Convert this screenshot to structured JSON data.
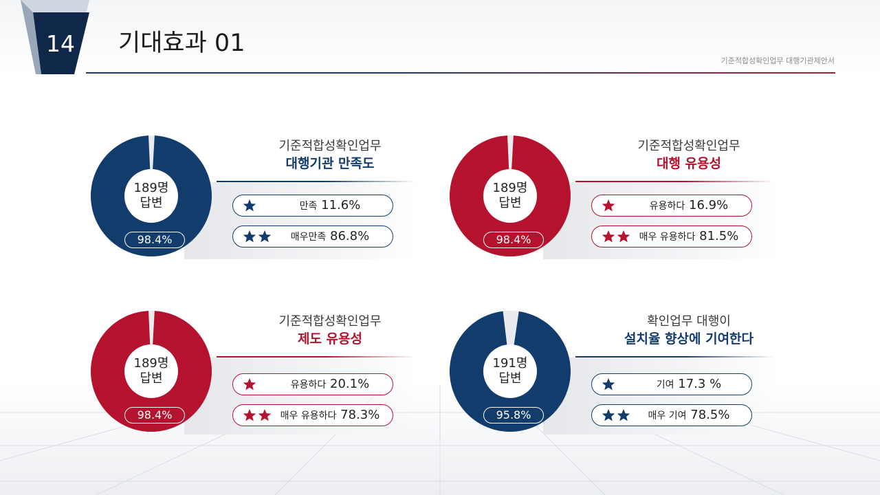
{
  "header": {
    "page_number": "14",
    "title": "기대효과 01",
    "doc_caption": "기준적합성확인업무 대행기관제안서"
  },
  "colors": {
    "navy": "#123c6c",
    "red": "#b5122e",
    "light_slice": "#e9ebee"
  },
  "panels": [
    {
      "theme": "navy",
      "heading_line1": "기준적합성확인업무",
      "heading_line2": "대행기관 만족도",
      "respondents_count": "189명",
      "respondents_word": "답변",
      "rate_label": "98.4%",
      "pills": [
        {
          "star_count": 1,
          "label": "만족",
          "value": "11.6%"
        },
        {
          "star_count": 2,
          "label": "매우만족",
          "value": "86.8%"
        }
      ]
    },
    {
      "theme": "red",
      "heading_line1": "기준적합성확인업무",
      "heading_line2": "대행 유용성",
      "respondents_count": "189명",
      "respondents_word": "답변",
      "rate_label": "98.4%",
      "pills": [
        {
          "star_count": 1,
          "label": "유용하다",
          "value": "16.9%"
        },
        {
          "star_count": 2,
          "label": "매우 유용하다",
          "value": "81.5%"
        }
      ]
    },
    {
      "theme": "red",
      "heading_line1": "기준적합성확인업무",
      "heading_line2": "제도 유용성",
      "respondents_count": "189명",
      "respondents_word": "답변",
      "rate_label": "98.4%",
      "pills": [
        {
          "star_count": 1,
          "label": "유용하다",
          "value": "20.1%"
        },
        {
          "star_count": 2,
          "label": "매우 유용하다",
          "value": "78.3%"
        }
      ]
    },
    {
      "theme": "navy",
      "heading_line1": "확인업무 대행이",
      "heading_line2": "설치율 향상에 기여한다",
      "respondents_count": "191명",
      "respondents_word": "답변",
      "rate_label": "95.8%",
      "pills": [
        {
          "star_count": 1,
          "label": "기여",
          "value": "17.3 %"
        },
        {
          "star_count": 2,
          "label": "매우 기여",
          "value": "78.5%"
        }
      ]
    }
  ],
  "chart_data": [
    {
      "type": "pie",
      "respondents": 189,
      "positive_total_percent": 98.4,
      "slices": [
        {
          "label": "positive",
          "value": 98.4
        },
        {
          "label": "other",
          "value": 1.6
        }
      ]
    },
    {
      "type": "pie",
      "respondents": 189,
      "positive_total_percent": 98.4,
      "slices": [
        {
          "label": "positive",
          "value": 98.4
        },
        {
          "label": "other",
          "value": 1.6
        }
      ]
    },
    {
      "type": "pie",
      "respondents": 189,
      "positive_total_percent": 98.4,
      "slices": [
        {
          "label": "positive",
          "value": 98.4
        },
        {
          "label": "other",
          "value": 1.6
        }
      ]
    },
    {
      "type": "pie",
      "respondents": 191,
      "positive_total_percent": 95.8,
      "slices": [
        {
          "label": "positive",
          "value": 95.8
        },
        {
          "label": "other",
          "value": 4.2
        }
      ]
    }
  ]
}
